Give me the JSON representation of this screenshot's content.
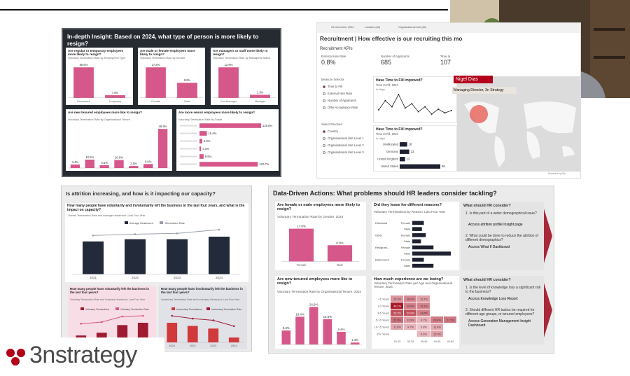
{
  "webcam": {
    "name": "Nigel Dias",
    "role": "Managing Director, 3n Strategy"
  },
  "insight": {
    "title": "In-depth Insight: Based on 2024, what type of person is more likely to resign?",
    "cards": [
      {
        "question": "Are regular or temporary employees more likely to resign?",
        "subtitle": "Voluntary Termination Rate by Employment Type",
        "categories": [
          "Permanent",
          "Temporary"
        ],
        "values": [
          86.6,
          7.6
        ],
        "value_labels": [
          "86.6%",
          "7.6%"
        ]
      },
      {
        "question": "Are male or female employees more likely to resign?",
        "subtitle": "Voluntary Termination Rate by Gender",
        "categories": [
          "Female",
          "Male"
        ],
        "values": [
          17.8,
          8.8
        ],
        "value_labels": [
          "17.8%",
          "8.8%"
        ]
      },
      {
        "question": "Are managers or staff more likely to resign?",
        "subtitle": "Voluntary Termination Rate by Managerial Status",
        "categories": [
          "Non-Manager",
          "Manager"
        ],
        "values": [
          12.9,
          1.3
        ],
        "value_labels": [
          "12.9%",
          "1.3%"
        ]
      },
      {
        "question": "Are new tenured employees more like to resign?",
        "subtitle": "Voluntary Termination Rate by Organisational Tenure",
        "values": [
          4.4,
          10.5,
          3.5,
          10.0,
          2.5,
          5.0,
          48.8
        ],
        "value_labels": [
          "4.4%",
          "10.5%",
          "3.5%",
          "10.0%",
          "2.5%",
          "5.0%",
          "48.8%"
        ]
      },
      {
        "question": "Are more senior employees more likely to resign?",
        "subtitle": "Voluntary Termination Rate by Grade",
        "values": [
          129.8,
          15.4,
          5.8,
          3.3,
          8.6,
          122.7
        ],
        "value_labels": [
          "129.8%",
          "15.4%",
          "5.8%",
          "3.3%",
          "8.6%",
          "122.7%"
        ]
      }
    ]
  },
  "recruitment": {
    "filters": [
      "31 December 2024",
      "Location (All)",
      "Organisational Unit (All)"
    ],
    "title": "Recruitment | How effective is our recruiting this mo",
    "kpi_heading": "Recruitment KPIs",
    "kpis": [
      {
        "label": "External Hire Rate",
        "value": "0.8%"
      },
      {
        "label": "Number of Applicants",
        "value": "685"
      },
      {
        "label": "Time to",
        "value": "107"
      }
    ],
    "measure_heading": "Measure Selector",
    "measures": [
      "Time to Fill",
      "External Hire Rate",
      "Number of Applicants",
      "Offer Acceptance Rate"
    ],
    "structure_heading": "Select Structure",
    "structures": [
      "Country",
      "Organisational Unit Level 1",
      "Organisational Unit Level 2",
      "Organisational Unit Level 3"
    ],
    "trend": {
      "title": "Have Time to Fill Improved?",
      "subtitle": "Time to Fill, 2024",
      "unit": "In days",
      "values": [
        95,
        110,
        100,
        120,
        98,
        105,
        92,
        100,
        88,
        96,
        90,
        94
      ]
    },
    "by_country": {
      "title": "Have Time to Fill Improved?",
      "subtitle": "Time to Fill, 2024",
      "unit": "In days",
      "categories": [
        "Unallocated",
        "Germany",
        "United Kingdom",
        "United States"
      ],
      "values": [
        18,
        23,
        13,
        98
      ]
    },
    "map_credit": "Powered by Esri"
  },
  "attrition": {
    "title": "Is attrition increasing, and how is it impacting our capacity?",
    "overview": {
      "question": "How many people have voluntarily and involuntarily left the business in the last four years, and what is the impact on capacity?",
      "subtitle": "Overall Termination Rate and Average Headcount, Last Four Year",
      "categories": [
        "2021",
        "2022",
        "2023",
        "2024"
      ],
      "series": [
        {
          "name": "Average Headcount",
          "color": "#232a3a",
          "values": [
            1030,
            1100,
            1100,
            1180
          ]
        },
        {
          "name": "Termination Rate",
          "color": "#9aa0aa",
          "values": [
            10.2,
            11.0,
            11.5,
            13.8
          ]
        }
      ]
    },
    "voluntary": {
      "question": "How many people have voluntarily left the business in the last four years?",
      "subtitle": "Voluntary Termination Rate and Voluntary Headcount, Last Four Year",
      "categories": [
        "2021",
        "2022",
        "2023",
        "2024"
      ],
      "series": [
        {
          "name": "Voluntary Terminations",
          "color": "#9e1b32",
          "values": [
            30,
            42,
            75,
            85
          ]
        },
        {
          "name": "Voluntary Termination Rate",
          "color": "#d6578a",
          "values": [
            2.9,
            3.8,
            6.8,
            7.2
          ]
        }
      ]
    },
    "involuntary": {
      "question": "How many people have involuntarily left the business in the last four years?",
      "subtitle": "Involuntary Termination Rate and Involuntary Headcount, Last Four Year",
      "categories": [
        "2021",
        "2022",
        "2023",
        "2024"
      ],
      "series": [
        {
          "name": "Involuntary Terminations",
          "color": "#d03a3a",
          "values": [
            88,
            74,
            62,
            22
          ]
        },
        {
          "name": "Involuntary Termination Rate",
          "color": "#9e1b32",
          "values": [
            8.5,
            6.7,
            5.6,
            1.9
          ]
        }
      ]
    }
  },
  "actions": {
    "title": "Data-Driven Actions: What problems should HR leaders consider tackling?",
    "gender": {
      "question": "Are female or male employees more likely to resign?",
      "subtitle": "Voluntary Termination Rate by Gender, 2024",
      "categories": [
        "Female",
        "Male"
      ],
      "values": [
        17.8,
        8.8
      ],
      "value_labels": [
        "17.8%",
        "8.8%"
      ]
    },
    "reasons": {
      "question": "Did they leave for different reasons?",
      "subtitle": "Voluntary Terminations by Reason, Last Four Year",
      "groups": [
        "Dismissal",
        "Other",
        "Resignati...",
        "Retirement"
      ],
      "subgroups": [
        "Female",
        "Male"
      ],
      "values": [
        [
          12,
          10
        ],
        [
          14,
          9
        ],
        [
          22,
          40
        ],
        [
          12,
          22
        ]
      ]
    },
    "consider1": {
      "heading": "What should HR consider?",
      "items": [
        {
          "text": "1. Is this part of a wider demographical issue?",
          "link": "Access attrition profile Insight page"
        },
        {
          "text": "2. What could be done to reduce the attrition of different demographics?",
          "link": "Access What If Dashboard"
        }
      ]
    },
    "tenure": {
      "question": "Are new tenured employees more like to resign?",
      "subtitle": "Voluntary Termination Rate by Organisational Tenure, 2024",
      "values": [
        9.3,
        18.4,
        24.9,
        16.8,
        8.4,
        1.3
      ],
      "value_labels": [
        "9.3%",
        "18.4%",
        "24.9%",
        "16.8%",
        "8.4%",
        "1.3%"
      ]
    },
    "experience": {
      "question": "How much experience are we losing?",
      "subtitle": "Voluntary Termination Rate per Age and Organisational Tenure, 2024",
      "rows": [
        "<1 Years",
        "1-3 Years",
        "3-5 Years",
        "5-10 Years",
        "10-15 Years",
        "15+ Years"
      ],
      "columns": [
        "20-25",
        "30-35",
        "35-40",
        "40-45",
        "45-50"
      ],
      "cells": [
        [
          "15.3%",
          "18.0%",
          "13.1%",
          null,
          null
        ],
        [
          "40.1%",
          "19.6%",
          "19.1%",
          null,
          null
        ],
        [
          "29.2%",
          "29.0%",
          "19.6%",
          null,
          null
        ],
        [
          "22.8%",
          "13.9%",
          "9.7%",
          "20.4%",
          "21.2%"
        ],
        [
          "11.8%",
          "9.7%",
          "5.8%",
          "11.4%",
          null
        ],
        [
          null,
          null,
          "8.6%",
          "13.0%",
          null
        ]
      ]
    },
    "consider2": {
      "heading": "What should HR consider?",
      "items": [
        {
          "text": "1. Is the level of knowledge loss a significant risk to the business?",
          "link": "Access Knowledge Loss Report"
        },
        {
          "text": "2. Should different HR tactics be required for different age groups, or tenured employees?",
          "link": "Access Generation Management Insight Dashboard"
        }
      ]
    }
  },
  "brand": "3nstrategy"
}
